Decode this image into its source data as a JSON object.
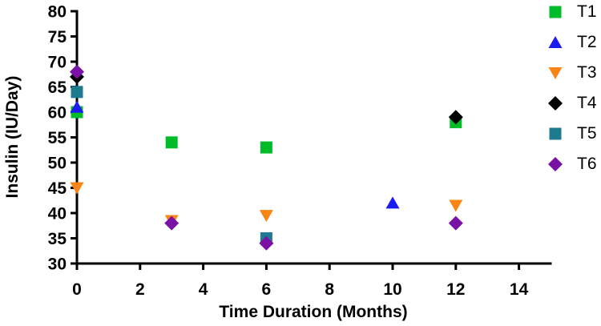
{
  "chart_data": {
    "type": "scatter",
    "title": "",
    "xlabel": "Time Duration (Months)",
    "ylabel": "Insulin (IU/Day)",
    "xlim": [
      0,
      15
    ],
    "ylim": [
      30,
      80
    ],
    "xticks": [
      0,
      2,
      4,
      6,
      8,
      10,
      12,
      14
    ],
    "yticks": [
      30,
      35,
      40,
      45,
      50,
      55,
      60,
      65,
      70,
      75,
      80
    ],
    "grid": false,
    "legend_position": "right-top",
    "axis_color": "#000000",
    "series": [
      {
        "name": "T1",
        "marker": "square",
        "color": "#00BC28",
        "points": [
          [
            0,
            60
          ],
          [
            3,
            54
          ],
          [
            6,
            53
          ],
          [
            12,
            58
          ]
        ]
      },
      {
        "name": "T2",
        "marker": "triangle-up",
        "color": "#1C1CF0",
        "points": [
          [
            0,
            61
          ],
          [
            10,
            42
          ]
        ]
      },
      {
        "name": "T3",
        "marker": "triangle-down",
        "color": "#F98517",
        "points": [
          [
            0,
            45
          ],
          [
            3,
            38.5
          ],
          [
            6,
            39.5
          ],
          [
            12,
            41.5
          ]
        ]
      },
      {
        "name": "T4",
        "marker": "diamond",
        "color": "#000000",
        "points": [
          [
            0,
            67
          ],
          [
            12,
            59
          ]
        ]
      },
      {
        "name": "T5",
        "marker": "square",
        "color": "#1E7B8F",
        "points": [
          [
            0,
            64
          ],
          [
            6,
            35
          ]
        ]
      },
      {
        "name": "T6",
        "marker": "diamond",
        "color": "#7A11A5",
        "points": [
          [
            0,
            68
          ],
          [
            3,
            38
          ],
          [
            6,
            34
          ],
          [
            12,
            38
          ]
        ]
      }
    ]
  }
}
